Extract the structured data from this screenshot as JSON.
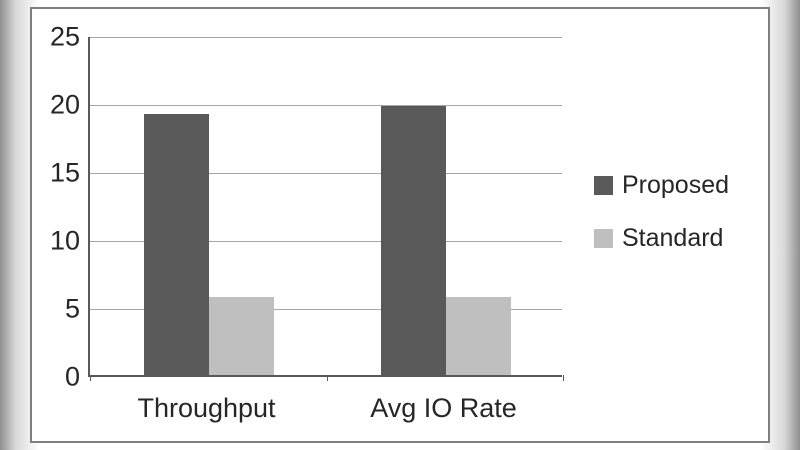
{
  "chart_data": {
    "type": "bar",
    "title": "",
    "xlabel": "",
    "ylabel": "",
    "categories": [
      "Throughput",
      "Avg IO Rate"
    ],
    "series": [
      {
        "name": "Proposed",
        "color": "#595959",
        "values": [
          19.2,
          19.8
        ]
      },
      {
        "name": "Standard",
        "color": "#bfbfbf",
        "values": [
          5.7,
          5.7
        ]
      }
    ],
    "ylim": [
      0,
      25
    ],
    "yticks": [
      0,
      5,
      10,
      15,
      20,
      25
    ],
    "grid": true,
    "legend_position": "right",
    "axis_color": "#595959",
    "gridline_color": "#a6a6a6",
    "text_color": "#262626"
  }
}
